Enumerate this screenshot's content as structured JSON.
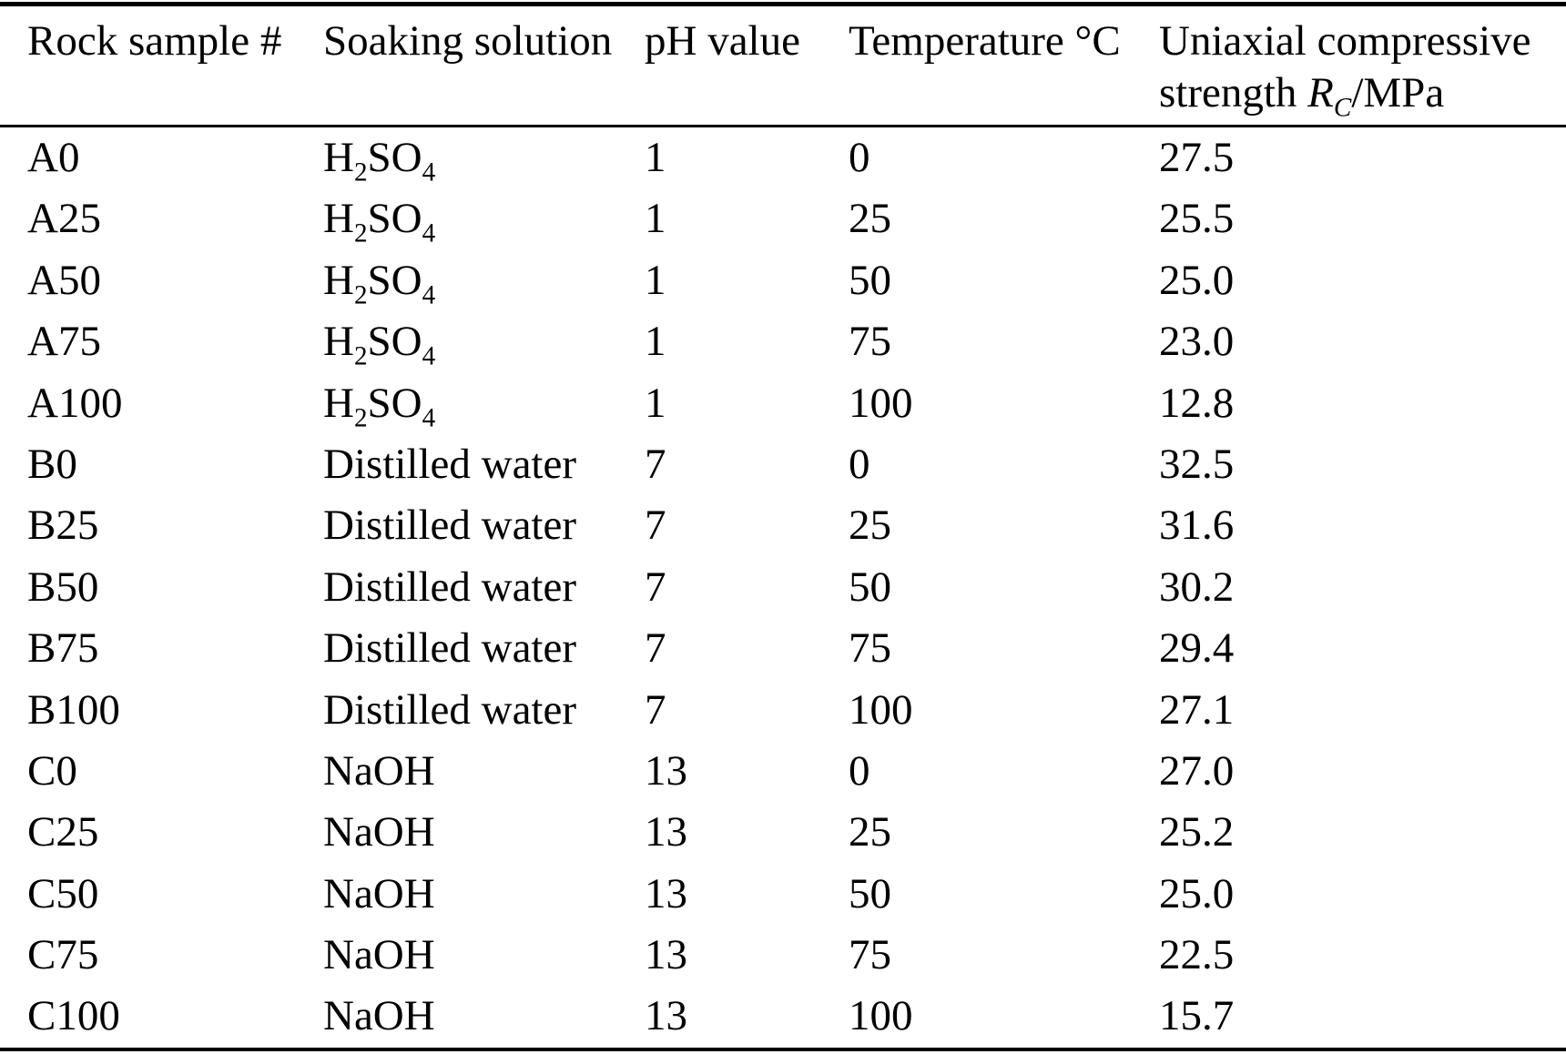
{
  "page": {
    "background": "#ffffff",
    "text_color": "#000000",
    "rule_color": "#000000"
  },
  "table": {
    "columns": [
      {
        "label": "Rock sample #"
      },
      {
        "label": "Soaking solution"
      },
      {
        "label": "pH value"
      },
      {
        "label": "Temperature °C"
      },
      {
        "label_line1": "Uniaxial compressive",
        "label_line2": [
          {
            "t": "strength "
          },
          {
            "t": "R",
            "i": true
          },
          {
            "t": "C",
            "i": true,
            "sub": true
          },
          {
            "t": "/MPa"
          }
        ]
      }
    ],
    "rows": [
      {
        "sample": "A0",
        "solution": [
          {
            "t": "H"
          },
          {
            "t": "2",
            "sub": true
          },
          {
            "t": "SO"
          },
          {
            "t": "4",
            "sub": true
          }
        ],
        "ph": "1",
        "temp": "0",
        "strength": "27.5"
      },
      {
        "sample": "A25",
        "solution": [
          {
            "t": "H"
          },
          {
            "t": "2",
            "sub": true
          },
          {
            "t": "SO"
          },
          {
            "t": "4",
            "sub": true
          }
        ],
        "ph": "1",
        "temp": "25",
        "strength": "25.5"
      },
      {
        "sample": "A50",
        "solution": [
          {
            "t": "H"
          },
          {
            "t": "2",
            "sub": true
          },
          {
            "t": "SO"
          },
          {
            "t": "4",
            "sub": true
          }
        ],
        "ph": "1",
        "temp": "50",
        "strength": "25.0"
      },
      {
        "sample": "A75",
        "solution": [
          {
            "t": "H"
          },
          {
            "t": "2",
            "sub": true
          },
          {
            "t": "SO"
          },
          {
            "t": "4",
            "sub": true
          }
        ],
        "ph": "1",
        "temp": "75",
        "strength": "23.0"
      },
      {
        "sample": "A100",
        "solution": [
          {
            "t": "H"
          },
          {
            "t": "2",
            "sub": true
          },
          {
            "t": "SO"
          },
          {
            "t": "4",
            "sub": true
          }
        ],
        "ph": "1",
        "temp": "100",
        "strength": "12.8"
      },
      {
        "sample": "B0",
        "solution": [
          {
            "t": "Distilled water"
          }
        ],
        "ph": "7",
        "temp": "0",
        "strength": "32.5"
      },
      {
        "sample": "B25",
        "solution": [
          {
            "t": "Distilled water"
          }
        ],
        "ph": "7",
        "temp": "25",
        "strength": "31.6"
      },
      {
        "sample": "B50",
        "solution": [
          {
            "t": "Distilled water"
          }
        ],
        "ph": "7",
        "temp": "50",
        "strength": "30.2"
      },
      {
        "sample": "B75",
        "solution": [
          {
            "t": "Distilled water"
          }
        ],
        "ph": "7",
        "temp": "75",
        "strength": "29.4"
      },
      {
        "sample": "B100",
        "solution": [
          {
            "t": "Distilled water"
          }
        ],
        "ph": "7",
        "temp": "100",
        "strength": "27.1"
      },
      {
        "sample": "C0",
        "solution": [
          {
            "t": "NaOH"
          }
        ],
        "ph": "13",
        "temp": "0",
        "strength": "27.0"
      },
      {
        "sample": "C25",
        "solution": [
          {
            "t": "NaOH"
          }
        ],
        "ph": "13",
        "temp": "25",
        "strength": "25.2"
      },
      {
        "sample": "C50",
        "solution": [
          {
            "t": "NaOH"
          }
        ],
        "ph": "13",
        "temp": "50",
        "strength": "25.0"
      },
      {
        "sample": "C75",
        "solution": [
          {
            "t": "NaOH"
          }
        ],
        "ph": "13",
        "temp": "75",
        "strength": "22.5"
      },
      {
        "sample": "C100",
        "solution": [
          {
            "t": "NaOH"
          }
        ],
        "ph": "13",
        "temp": "100",
        "strength": "15.7"
      }
    ]
  }
}
